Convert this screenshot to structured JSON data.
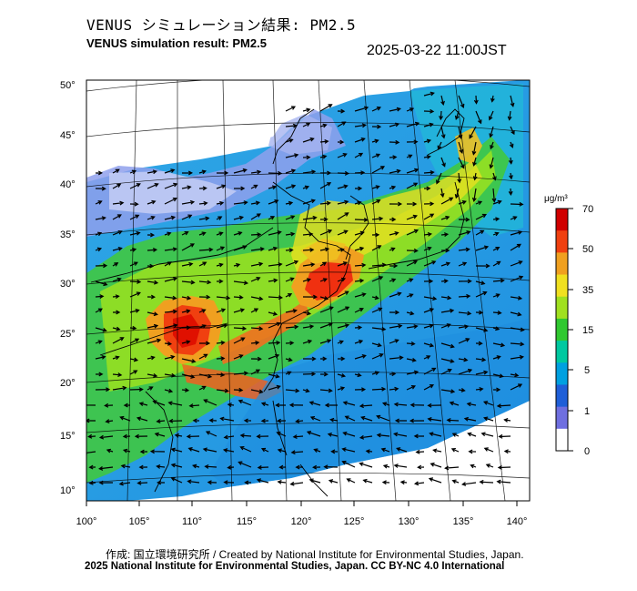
{
  "title_jp": "VENUS シミュレーション結果: PM2.5",
  "title_en": "VENUS simulation result: PM2.5",
  "timestamp": "2025-03-22 11:00JST",
  "map": {
    "lat_labels": [
      "50°",
      "45°",
      "40°",
      "35°",
      "30°",
      "25°",
      "20°",
      "15°",
      "10°"
    ],
    "lon_labels": [
      "100°",
      "105°",
      "110°",
      "115°",
      "120°",
      "125°",
      "130°",
      "135°",
      "140°"
    ]
  },
  "colorbar": {
    "unit": "μg/m³",
    "ticks": [
      "70",
      "50",
      "35",
      "15",
      "5",
      "1",
      "0"
    ],
    "colors": [
      "#ffffff",
      "#6f6fe0",
      "#1f5fd8",
      "#00a0e0",
      "#00c8a0",
      "#30c830",
      "#a0e020",
      "#f0e020",
      "#f0a020",
      "#f04010",
      "#d00000"
    ]
  },
  "credit_line1": "作成: 国立環境研究所 / Created by National Institute for Environmental Studies, Japan.",
  "credit_line2": "2025 National Institute for Environmental Studies, Japan. CC BY-NC 4.0 International"
}
